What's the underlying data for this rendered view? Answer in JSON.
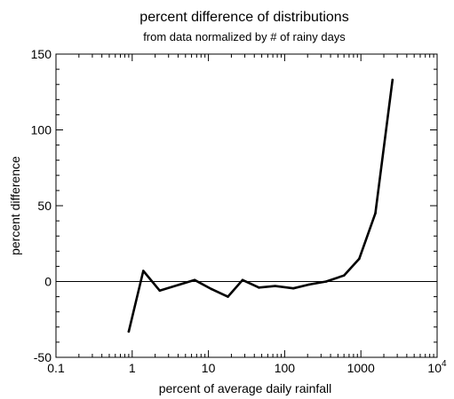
{
  "chart_data": {
    "type": "line",
    "title": "percent difference of distributions",
    "subtitle": "from data normalized by # of rainy days",
    "xlabel": "percent of average daily rainfall",
    "ylabel": "percent difference",
    "x_scale": "log",
    "xlim": [
      0.1,
      10000
    ],
    "ylim": [
      -50,
      150
    ],
    "x_ticks": [
      {
        "value": 0.1,
        "label": "0.1"
      },
      {
        "value": 1,
        "label": "1"
      },
      {
        "value": 10,
        "label": "10"
      },
      {
        "value": 100,
        "label": "100"
      },
      {
        "value": 1000,
        "label": "1000"
      },
      {
        "value": 10000,
        "base": "10",
        "exponent": "4"
      }
    ],
    "y_ticks": [
      {
        "value": -50,
        "label": "-50"
      },
      {
        "value": 0,
        "label": "0"
      },
      {
        "value": 50,
        "label": "50"
      },
      {
        "value": 100,
        "label": "100"
      },
      {
        "value": 150,
        "label": "150"
      }
    ],
    "reference_line_y": 0,
    "grid": false,
    "series": [
      {
        "color": "#000000",
        "points": [
          {
            "x": 0.9,
            "y": -33
          },
          {
            "x": 1.4,
            "y": 7
          },
          {
            "x": 2.3,
            "y": -6
          },
          {
            "x": 4.2,
            "y": -2
          },
          {
            "x": 6.6,
            "y": 1
          },
          {
            "x": 11,
            "y": -5
          },
          {
            "x": 18,
            "y": -10
          },
          {
            "x": 28,
            "y": 1
          },
          {
            "x": 46,
            "y": -4
          },
          {
            "x": 75,
            "y": -3
          },
          {
            "x": 130,
            "y": -4.5
          },
          {
            "x": 210,
            "y": -2
          },
          {
            "x": 350,
            "y": 0
          },
          {
            "x": 600,
            "y": 4
          },
          {
            "x": 950,
            "y": 15
          },
          {
            "x": 1550,
            "y": 45
          },
          {
            "x": 2600,
            "y": 133
          }
        ]
      }
    ]
  }
}
